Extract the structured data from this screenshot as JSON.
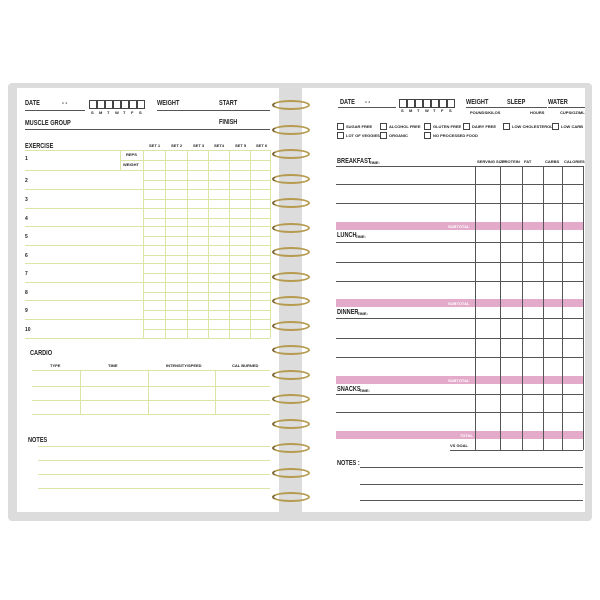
{
  "left_page": {
    "date": "DATE",
    "date_dashes": "-   -",
    "days": [
      "S",
      "M",
      "T",
      "W",
      "T",
      "F",
      "S"
    ],
    "weight": "WEIGHT",
    "start": "START",
    "muscle_group": "MUSCLE GROUP",
    "finish": "FINISH",
    "exercise": "EXERCISE",
    "sets": [
      "SET 1",
      "SET 2",
      "SET 3",
      "SET4",
      "SET 5",
      "SET 6"
    ],
    "reps": "REPS",
    "weight_row": "WEIGHT",
    "rows": [
      "1",
      "2",
      "3",
      "4",
      "5",
      "6",
      "7",
      "8",
      "9",
      "10"
    ],
    "cardio": "CARDIO",
    "cardio_cols": [
      "TYPE",
      "TIME",
      "INTENSITY/SPEED",
      "CAL BURNED"
    ],
    "notes": "NOTES"
  },
  "right_page": {
    "date": "DATE",
    "date_dashes": "-   -",
    "days": [
      "S",
      "M",
      "T",
      "W",
      "T",
      "F",
      "S"
    ],
    "weight": "WEIGHT",
    "weight_unit": "POUNDS/KILOS",
    "sleep": "SLEEP",
    "sleep_unit": "HOURS",
    "water": "WATER",
    "water_unit": "CUPS/OZ/ML",
    "checks": [
      "SUGAR FREE",
      "ALCOHOL FREE",
      "GLUTEN FREE",
      "DAIRY FREE",
      "LOW CHOLESTEROL",
      "LOW CARB",
      "LOT OF VEGGIES",
      "ORGANIC",
      "NO PROCESSED FOOD"
    ],
    "cols": [
      "SERVING SIZE",
      "PROTEIN",
      "FAT",
      "CARBS",
      "CALORIES"
    ],
    "meals": [
      {
        "name": "BREAKFAST",
        "time": "TIME:"
      },
      {
        "name": "LUNCH",
        "time": "TIME:"
      },
      {
        "name": "DINNER",
        "time": "TIME:"
      },
      {
        "name": "SNACKS",
        "time": "TIME:"
      }
    ],
    "subtotal": "SUBTOTAL",
    "total": "TOTAL",
    "vs_goal": "VS GOAL",
    "notes": "NOTES :"
  },
  "colors": {
    "accent_pink": "#e3abc9",
    "grid_green": "#d9e5a4",
    "spiral": "#b59a4f"
  }
}
